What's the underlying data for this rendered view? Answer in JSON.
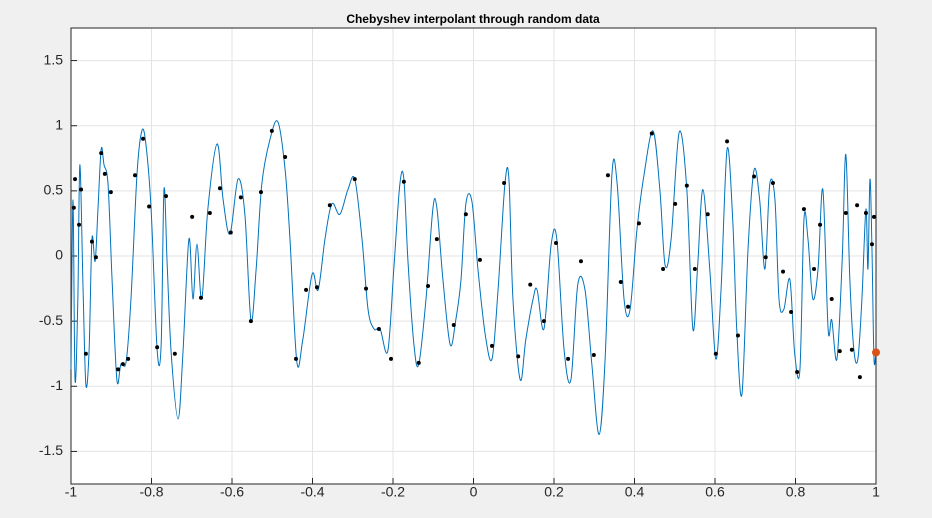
{
  "chart_data": {
    "type": "line",
    "title": "Chebyshev interpolant through random data",
    "xlim": [
      -1,
      1
    ],
    "ylim": [
      -1.75,
      1.75
    ],
    "xticks": [
      -1,
      -0.8,
      -0.6,
      -0.4,
      -0.2,
      0,
      0.2,
      0.4,
      0.6,
      0.8,
      1
    ],
    "yticks": [
      -1.5,
      -1,
      -0.5,
      0,
      0.5,
      1,
      1.5
    ],
    "grid": true,
    "series": [
      {
        "type": "line",
        "color": "#0072bd",
        "x": [
          -1,
          -0.995,
          -0.99,
          -0.983,
          -0.978,
          -0.97,
          -0.963,
          -0.955,
          -0.948,
          -0.94,
          -0.933,
          -0.925,
          -0.918,
          -0.908,
          -0.898,
          -0.886,
          -0.876,
          -0.863,
          -0.851,
          -0.836,
          -0.824,
          -0.814,
          -0.801,
          -0.786,
          -0.776,
          -0.769,
          -0.761,
          -0.751,
          -0.734,
          -0.722,
          -0.707,
          -0.697,
          -0.687,
          -0.675,
          -0.66,
          -0.637,
          -0.622,
          -0.605,
          -0.585,
          -0.568,
          -0.553,
          -0.54,
          -0.526,
          -0.506,
          -0.486,
          -0.468,
          -0.456,
          -0.439,
          -0.424,
          -0.401,
          -0.386,
          -0.369,
          -0.352,
          -0.332,
          -0.312,
          -0.295,
          -0.277,
          -0.262,
          -0.247,
          -0.232,
          -0.213,
          -0.198,
          -0.183,
          -0.173,
          -0.163,
          -0.148,
          -0.136,
          -0.118,
          -0.101,
          -0.091,
          -0.076,
          -0.058,
          -0.044,
          -0.031,
          -0.019,
          -0.004,
          0.011,
          0.029,
          0.046,
          0.061,
          0.078,
          0.088,
          0.098,
          0.116,
          0.13,
          0.148,
          0.158,
          0.175,
          0.193,
          0.207,
          0.225,
          0.242,
          0.259,
          0.277,
          0.294,
          0.312,
          0.327,
          0.344,
          0.357,
          0.374,
          0.389,
          0.406,
          0.424,
          0.446,
          0.463,
          0.476,
          0.491,
          0.511,
          0.53,
          0.545,
          0.557,
          0.57,
          0.587,
          0.602,
          0.615,
          0.63,
          0.644,
          0.654,
          0.667,
          0.682,
          0.697,
          0.711,
          0.724,
          0.736,
          0.749,
          0.759,
          0.771,
          0.786,
          0.798,
          0.811,
          0.821,
          0.831,
          0.843,
          0.856,
          0.868,
          0.881,
          0.89,
          0.903,
          0.916,
          0.925,
          0.935,
          0.945,
          0.955,
          0.965,
          0.975,
          0.98,
          0.985,
          0.99,
          0.995,
          1
        ],
        "values": [
          -0.87,
          0.43,
          -0.95,
          -0.33,
          0.7,
          -0.26,
          -0.99,
          -0.72,
          0.13,
          -0.04,
          0.36,
          0.82,
          0.7,
          0.55,
          -0.18,
          -0.95,
          -0.83,
          -0.81,
          -0.33,
          0.63,
          0.96,
          0.86,
          0.36,
          -0.72,
          -0.68,
          0.51,
          -0.07,
          -0.75,
          -1.25,
          -0.75,
          0.13,
          -0.33,
          0.09,
          -0.33,
          0.36,
          0.86,
          0.43,
          0.17,
          0.59,
          0.32,
          -0.49,
          -0.1,
          0.55,
          0.89,
          1.03,
          0.66,
          0.13,
          -0.81,
          -0.64,
          -0.14,
          -0.26,
          0.13,
          0.4,
          0.32,
          0.51,
          0.59,
          0.13,
          -0.41,
          -0.56,
          -0.56,
          -0.73,
          -0.1,
          0.55,
          0.59,
          -0.03,
          -0.68,
          -0.83,
          -0.33,
          0.36,
          0.37,
          -0.18,
          -0.68,
          -0.49,
          -0.18,
          0.4,
          0.42,
          -0.1,
          -0.6,
          -0.79,
          -0.26,
          0.55,
          0.59,
          -0.33,
          -0.95,
          -0.64,
          -0.33,
          -0.26,
          -0.56,
          0.09,
          0.13,
          -0.72,
          -0.95,
          -0.22,
          -0.26,
          -0.83,
          -1.37,
          -0.79,
          0.63,
          0.55,
          -0.33,
          -0.41,
          0.2,
          0.63,
          0.96,
          0.51,
          -0.07,
          0.13,
          0.95,
          0.51,
          -0.56,
          -0.07,
          0.51,
          -0.1,
          -0.79,
          -0.26,
          0.82,
          0.28,
          -0.56,
          -1.06,
          0.05,
          0.66,
          0.43,
          -0.1,
          0.55,
          0.43,
          -0.33,
          -0.41,
          -0.18,
          -0.75,
          -0.87,
          0.28,
          0.13,
          -0.33,
          -0.1,
          0.51,
          -0.56,
          -0.49,
          -0.79,
          -0.03,
          0.78,
          -0.18,
          -0.72,
          -0.79,
          -0.33,
          0.36,
          -0.1,
          0.59,
          0.05,
          -0.79,
          -0.72
        ]
      },
      {
        "type": "scatter",
        "color": "#000000",
        "x": [
          -0.993,
          -0.99,
          -0.98,
          -0.975,
          -0.963,
          -0.948,
          -0.938,
          -0.925,
          -0.916,
          -0.901,
          -0.883,
          -0.871,
          -0.858,
          -0.841,
          -0.821,
          -0.806,
          -0.786,
          -0.764,
          -0.742,
          -0.699,
          -0.677,
          -0.655,
          -0.63,
          -0.603,
          -0.578,
          -0.553,
          -0.528,
          -0.501,
          -0.468,
          -0.441,
          -0.416,
          -0.389,
          -0.357,
          -0.295,
          -0.267,
          -0.235,
          -0.205,
          -0.173,
          -0.136,
          -0.113,
          -0.091,
          -0.049,
          -0.019,
          0.016,
          0.046,
          0.076,
          0.111,
          0.141,
          0.175,
          0.205,
          0.235,
          0.267,
          0.299,
          0.334,
          0.366,
          0.384,
          0.411,
          0.443,
          0.471,
          0.501,
          0.53,
          0.55,
          0.582,
          0.602,
          0.63,
          0.657,
          0.697,
          0.726,
          0.744,
          0.769,
          0.789,
          0.804,
          0.821,
          0.846,
          0.861,
          0.89,
          0.91,
          0.925,
          0.94,
          0.953,
          0.96,
          0.975,
          0.99,
          0.995
        ],
        "values": [
          0.37,
          0.59,
          0.24,
          0.51,
          -0.75,
          0.11,
          -0.01,
          0.79,
          0.63,
          0.49,
          -0.87,
          -0.83,
          -0.79,
          0.62,
          0.9,
          0.38,
          -0.7,
          0.46,
          -0.75,
          0.3,
          -0.32,
          0.33,
          0.52,
          0.18,
          0.45,
          -0.5,
          0.49,
          0.96,
          0.76,
          -0.79,
          -0.26,
          -0.24,
          0.39,
          0.59,
          -0.25,
          -0.56,
          -0.79,
          0.57,
          -0.82,
          -0.23,
          0.13,
          -0.53,
          0.32,
          -0.03,
          -0.69,
          0.56,
          -0.77,
          -0.22,
          -0.5,
          0.1,
          -0.79,
          -0.04,
          -0.76,
          0.62,
          -0.2,
          -0.39,
          0.25,
          0.94,
          -0.1,
          0.4,
          0.54,
          -0.1,
          0.32,
          -0.75,
          0.88,
          -0.61,
          0.61,
          -0.01,
          0.56,
          -0.12,
          -0.43,
          -0.89,
          0.36,
          -0.1,
          0.24,
          -0.33,
          -0.73,
          0.33,
          -0.72,
          0.39,
          -0.93,
          0.33,
          0.09,
          0.3
        ]
      },
      {
        "type": "scatter",
        "color": "#d95319",
        "x": [
          1
        ],
        "values": [
          -0.74
        ]
      }
    ]
  }
}
